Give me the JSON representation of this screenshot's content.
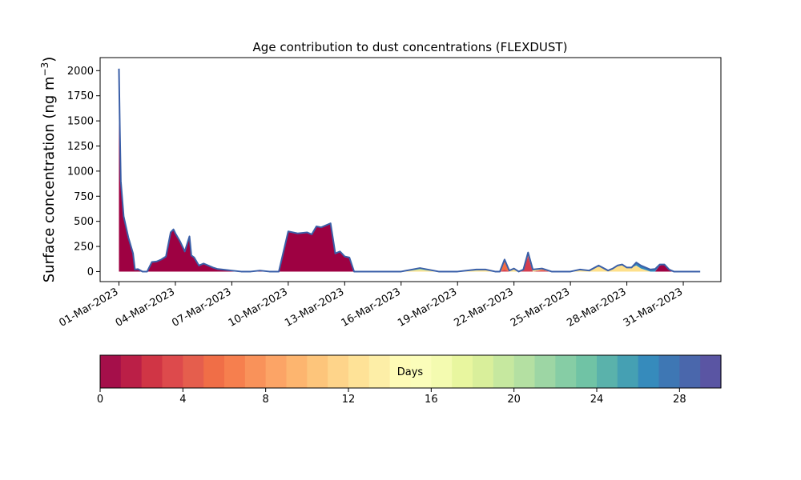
{
  "chart_data": {
    "type": "area",
    "title": "Age contribution to dust concentrations (FLEXDUST)",
    "ylabel_main": "Surface concentration (ng m",
    "ylabel_sup": "−3",
    "ylabel_close": ")",
    "xlabel": "",
    "ylim": [
      -100,
      2130
    ],
    "xlim": [
      -1,
      32
    ],
    "yticks": [
      0,
      250,
      500,
      750,
      1000,
      1250,
      1500,
      1750,
      2000
    ],
    "ytick_labels": [
      "0",
      "250",
      "500",
      "750",
      "1000",
      "1250",
      "1500",
      "1750",
      "2000"
    ],
    "xticks": [
      0,
      3,
      6,
      9,
      12,
      15,
      18,
      21,
      24,
      27,
      30
    ],
    "xtick_labels": [
      "01-Mar-2023",
      "04-Mar-2023",
      "07-Mar-2023",
      "10-Mar-2023",
      "13-Mar-2023",
      "16-Mar-2023",
      "19-Mar-2023",
      "22-Mar-2023",
      "25-Mar-2023",
      "28-Mar-2023",
      "31-Mar-2023"
    ],
    "x_unit": "days since 01-Mar-2023",
    "x": [
      0,
      0.05,
      0.1,
      0.25,
      0.5,
      0.75,
      0.85,
      1.0,
      1.25,
      1.5,
      1.75,
      2.0,
      2.25,
      2.5,
      2.75,
      2.9,
      3.0,
      3.25,
      3.5,
      3.75,
      3.85,
      4.0,
      4.25,
      4.5,
      4.75,
      5.0,
      5.25,
      5.5,
      6.0,
      6.5,
      7.0,
      7.5,
      8.0,
      8.5,
      9.0,
      9.5,
      10.0,
      10.25,
      10.5,
      10.75,
      11.0,
      11.25,
      11.5,
      11.75,
      12.0,
      12.25,
      12.5,
      13.0,
      14.0,
      15.0,
      16.0,
      17.0,
      18.0,
      19.0,
      19.5,
      20.0,
      20.25,
      20.5,
      20.75,
      21.0,
      21.25,
      21.5,
      21.75,
      22.0,
      22.5,
      23.0,
      23.5,
      24.0,
      24.5,
      25.0,
      25.5,
      26.0,
      26.25,
      26.5,
      26.75,
      27.0,
      27.25,
      27.5,
      27.75,
      28.0,
      28.25,
      28.5,
      28.75,
      29.0,
      29.25,
      29.5,
      30.0,
      30.5,
      30.9
    ],
    "series": [
      {
        "values": [
          2020,
          1400,
          900,
          550,
          340,
          180,
          20,
          25,
          0,
          0,
          95,
          100,
          120,
          150,
          390,
          420,
          380,
          300,
          200,
          350,
          160,
          140,
          60,
          80,
          60,
          40,
          25,
          20,
          10,
          0,
          0,
          10,
          0,
          0,
          400,
          380,
          390,
          370,
          450,
          440,
          460,
          480,
          180,
          200,
          150,
          140,
          0,
          0,
          0,
          0,
          0,
          0,
          0,
          0,
          0,
          0,
          0,
          0,
          0,
          0,
          0,
          0,
          0,
          0,
          0,
          0,
          0,
          0,
          0,
          0,
          0,
          0,
          0,
          0,
          0,
          0,
          0,
          0,
          0,
          0,
          0,
          0,
          60,
          70,
          20,
          0,
          0,
          0,
          0
        ]
      },
      {
        "values": [
          0,
          0,
          0,
          0,
          0,
          0,
          0,
          0,
          0,
          0,
          0,
          0,
          0,
          0,
          0,
          0,
          0,
          0,
          0,
          0,
          0,
          0,
          0,
          0,
          0,
          0,
          0,
          0,
          0,
          0,
          0,
          0,
          0,
          0,
          0,
          0,
          0,
          0,
          0,
          0,
          0,
          0,
          0,
          0,
          0,
          0,
          0,
          0,
          0,
          0,
          0,
          0,
          0,
          0,
          0,
          0,
          0,
          20,
          0,
          0,
          0,
          20,
          150,
          0,
          10,
          0,
          0,
          0,
          0,
          0,
          0,
          0,
          0,
          0,
          0,
          0,
          0,
          0,
          0,
          0,
          0,
          0,
          0,
          0,
          0,
          0,
          0,
          0,
          0
        ]
      },
      {
        "values": [
          0,
          0,
          0,
          0,
          0,
          0,
          0,
          0,
          0,
          0,
          0,
          0,
          0,
          0,
          0,
          0,
          0,
          0,
          0,
          0,
          0,
          0,
          0,
          0,
          0,
          0,
          0,
          0,
          0,
          0,
          0,
          0,
          0,
          0,
          0,
          0,
          0,
          0,
          0,
          0,
          0,
          0,
          0,
          0,
          0,
          0,
          0,
          0,
          0,
          0,
          0,
          0,
          0,
          0,
          0,
          0,
          0,
          100,
          0,
          0,
          0,
          0,
          30,
          0,
          10,
          0,
          0,
          0,
          0,
          0,
          0,
          0,
          0,
          0,
          0,
          0,
          0,
          0,
          0,
          0,
          0,
          0,
          0,
          0,
          0,
          0,
          0,
          0,
          0
        ]
      },
      {
        "values": [
          0,
          0,
          0,
          0,
          0,
          0,
          0,
          0,
          0,
          0,
          0,
          0,
          0,
          0,
          0,
          0,
          0,
          0,
          0,
          0,
          0,
          0,
          0,
          0,
          0,
          0,
          0,
          0,
          0,
          0,
          0,
          0,
          0,
          0,
          0,
          0,
          0,
          0,
          0,
          0,
          0,
          0,
          0,
          0,
          0,
          0,
          0,
          0,
          0,
          0,
          15,
          0,
          0,
          10,
          15,
          0,
          0,
          0,
          10,
          30,
          0,
          0,
          10,
          20,
          10,
          0,
          0,
          0,
          20,
          10,
          60,
          10,
          30,
          60,
          70,
          40,
          40,
          60,
          30,
          15,
          0,
          0,
          0,
          0,
          0,
          0,
          0,
          0,
          0
        ]
      },
      {
        "values": [
          0,
          0,
          0,
          0,
          0,
          0,
          0,
          0,
          0,
          0,
          0,
          0,
          0,
          0,
          0,
          0,
          0,
          0,
          0,
          0,
          0,
          0,
          0,
          0,
          0,
          0,
          0,
          0,
          0,
          0,
          0,
          0,
          0,
          0,
          0,
          0,
          0,
          0,
          0,
          0,
          0,
          0,
          0,
          0,
          0,
          0,
          0,
          0,
          0,
          0,
          20,
          0,
          0,
          10,
          5,
          0,
          0,
          0,
          0,
          0,
          0,
          0,
          0,
          0,
          0,
          0,
          0,
          0,
          0,
          0,
          0,
          0,
          0,
          0,
          0,
          0,
          0,
          0,
          0,
          0,
          0,
          0,
          0,
          0,
          0,
          0,
          0,
          0,
          0
        ]
      },
      {
        "values": [
          0,
          0,
          0,
          0,
          0,
          0,
          0,
          0,
          0,
          0,
          0,
          0,
          0,
          0,
          0,
          0,
          0,
          0,
          0,
          0,
          0,
          0,
          0,
          0,
          0,
          0,
          0,
          0,
          0,
          0,
          0,
          0,
          0,
          0,
          0,
          0,
          0,
          0,
          0,
          0,
          0,
          0,
          0,
          0,
          0,
          0,
          0,
          0,
          0,
          0,
          0,
          0,
          0,
          0,
          0,
          0,
          0,
          0,
          0,
          0,
          0,
          0,
          0,
          0,
          0,
          0,
          0,
          0,
          0,
          0,
          0,
          0,
          0,
          0,
          0,
          0,
          0,
          30,
          30,
          25,
          20,
          25,
          10,
          0,
          0,
          0,
          0,
          0,
          0
        ]
      }
    ],
    "series_colors": [
      "#9e0142",
      "#d53e4f",
      "#f46d43",
      "#fee08b",
      "#abdda4",
      "#3288bd"
    ],
    "outline_color": "#3a5fa8",
    "grid": false,
    "legend": "none",
    "colorbar": {
      "label": "Days",
      "min": 0,
      "max": 30,
      "ticks": [
        0,
        4,
        8,
        12,
        16,
        20,
        24,
        28
      ],
      "tick_labels": [
        "0",
        "4",
        "8",
        "12",
        "16",
        "20",
        "24",
        "28"
      ],
      "colors": [
        "#a50f4a",
        "#bb1f47",
        "#d03545",
        "#dd4a4c",
        "#e55e4d",
        "#f06e47",
        "#f67f4e",
        "#f9925a",
        "#fca466",
        "#fdb56f",
        "#fdc57b",
        "#fed48a",
        "#fee297",
        "#fdeea7",
        "#fefbb6",
        "#fbfdba",
        "#f4fbb0",
        "#e8f69f",
        "#d9ef9b",
        "#c6e89f",
        "#b4e0a2",
        "#9dd6a4",
        "#86cda5",
        "#70c3a5",
        "#5ab2ab",
        "#45a0b3",
        "#368bbc",
        "#3e77b4",
        "#4a67ac",
        "#5a55a3"
      ]
    }
  }
}
